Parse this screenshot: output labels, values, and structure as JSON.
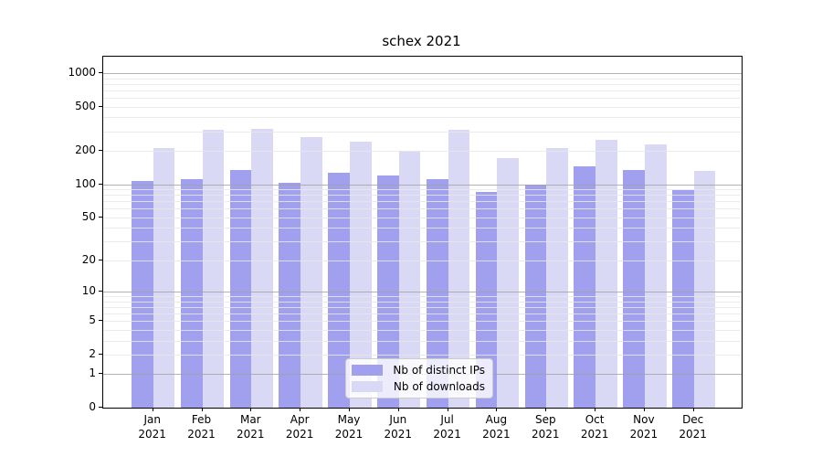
{
  "chart_data": {
    "type": "bar",
    "title": "schex 2021",
    "categories": [
      "Jan",
      "Feb",
      "Mar",
      "Apr",
      "May",
      "Jun",
      "Jul",
      "Aug",
      "Sep",
      "Oct",
      "Nov",
      "Dec"
    ],
    "category_year_label": "2021",
    "series": [
      {
        "name": "Nb of distinct IPs",
        "color": "#a0a0ee",
        "values": [
          107,
          111,
          135,
          103,
          128,
          119,
          112,
          85,
          100,
          146,
          135,
          88
        ]
      },
      {
        "name": "Nb of downloads",
        "color": "#d9d9f6",
        "values": [
          211,
          310,
          317,
          267,
          241,
          202,
          310,
          172,
          212,
          250,
          228,
          133
        ]
      }
    ],
    "y_axis": {
      "scale": "log10(1+x)",
      "tick_values": [
        0,
        1,
        2,
        5,
        10,
        20,
        50,
        100,
        200,
        500,
        1000
      ],
      "major_gridline_values": [
        1,
        10,
        100,
        1000
      ],
      "minor_gridline_values": [
        2,
        3,
        4,
        5,
        6,
        7,
        8,
        9,
        20,
        30,
        40,
        50,
        60,
        70,
        80,
        90,
        200,
        300,
        400,
        500,
        600,
        700,
        800,
        900
      ]
    },
    "legend_position": "lower center",
    "grid": true,
    "colors": {
      "axis": "#000000",
      "major_grid": "#a0a0a0",
      "minor_grid": "#e7e7e7",
      "background": "#ffffff"
    }
  }
}
